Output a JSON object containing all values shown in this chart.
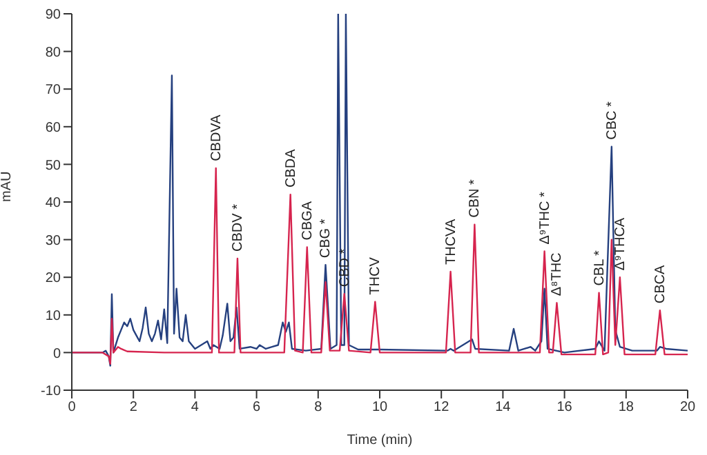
{
  "chart_data": {
    "type": "line",
    "xlabel": "Time (min)",
    "ylabel": "mAU",
    "xlim": [
      0,
      20
    ],
    "xticks": [
      0,
      2,
      4,
      6,
      8,
      10,
      12,
      14,
      16,
      18,
      20
    ],
    "ylim": [
      -10,
      90
    ],
    "yticks": [
      -10,
      0,
      10,
      20,
      30,
      40,
      50,
      60,
      70,
      80,
      90
    ],
    "marker": "none",
    "line_style": "solid",
    "series": [
      {
        "color": "#25407f",
        "x": [
          0,
          1.0,
          1.1,
          1.2,
          1.25,
          1.3,
          1.35,
          1.5,
          1.6,
          1.7,
          1.8,
          1.9,
          2.0,
          2.1,
          2.2,
          2.3,
          2.4,
          2.5,
          2.6,
          2.7,
          2.8,
          2.9,
          3.0,
          3.1,
          3.25,
          3.32,
          3.4,
          3.5,
          3.6,
          3.7,
          3.8,
          4.0,
          4.4,
          4.5,
          4.6,
          4.8,
          4.9,
          5.05,
          5.15,
          5.25,
          5.35,
          5.45,
          5.8,
          6.0,
          6.1,
          6.3,
          6.5,
          6.7,
          6.85,
          6.95,
          7.05,
          7.15,
          7.6,
          8.1,
          8.24,
          8.4,
          8.6,
          8.65,
          8.75,
          8.85,
          8.9,
          9.0,
          9.3,
          10,
          12.2,
          12.3,
          12.4,
          13.0,
          13.1,
          14.2,
          14.35,
          14.5,
          14.9,
          15.05,
          15.25,
          15.35,
          15.45,
          16.0,
          17.0,
          17.12,
          17.3,
          17.53,
          17.65,
          17.8,
          18.2,
          19.0,
          19.1,
          19.3,
          20
        ],
        "values": [
          0,
          0,
          0.5,
          -1,
          -3.5,
          15.5,
          0,
          4,
          6,
          8,
          7,
          9,
          6,
          4.5,
          3,
          6.5,
          12,
          5,
          3,
          5,
          8.5,
          3.5,
          11.5,
          2.5,
          73.6,
          5,
          17,
          4,
          3,
          10,
          3,
          1,
          3,
          1,
          2,
          1,
          4.5,
          13,
          3,
          4,
          12,
          1,
          1.5,
          1,
          2,
          1,
          1.5,
          2,
          8,
          5.5,
          8,
          1,
          0.5,
          1,
          23.3,
          1,
          2,
          90,
          2,
          2,
          90,
          2,
          0.8,
          0.8,
          0.5,
          1,
          0.5,
          3.5,
          1,
          0.5,
          6.3,
          0.5,
          1.5,
          0.5,
          3,
          17,
          1,
          0,
          1,
          3,
          0.5,
          54.7,
          6,
          1.5,
          0.5,
          0.5,
          1.5,
          1,
          0.5
        ]
      },
      {
        "color": "#d6244e",
        "x": [
          0,
          1.0,
          1.2,
          1.25,
          1.3,
          1.35,
          1.5,
          1.6,
          1.8,
          3,
          4.55,
          4.68,
          4.78,
          5.28,
          5.38,
          5.48,
          6.9,
          7.1,
          7.25,
          7.5,
          7.64,
          7.78,
          8.1,
          8.24,
          8.38,
          8.7,
          8.85,
          9.0,
          9.7,
          9.85,
          10.0,
          12.15,
          12.3,
          12.45,
          12.95,
          13.08,
          13.22,
          15.2,
          15.35,
          15.5,
          15.62,
          15.75,
          15.9,
          17.0,
          17.12,
          17.25,
          17.42,
          17.53,
          17.65,
          17.8,
          17.95,
          18.95,
          19.1,
          19.25,
          20
        ],
        "values": [
          0,
          0,
          -1,
          -3,
          9,
          0,
          1.5,
          1,
          0.3,
          0,
          0,
          49,
          0,
          0,
          25,
          0,
          0,
          42,
          0.5,
          0,
          28,
          0,
          0,
          18.7,
          0.5,
          0.5,
          15.6,
          0.5,
          0,
          13.5,
          0,
          0,
          21.5,
          0,
          0,
          34,
          0,
          0,
          26.9,
          0,
          0,
          13.2,
          -0.5,
          -0.5,
          15.9,
          -0.5,
          0,
          30,
          2,
          20,
          -0.5,
          -0.5,
          11.2,
          -0.5,
          -0.5
        ]
      }
    ],
    "annotations": [
      {
        "text": "CBDVA",
        "x": 4.68,
        "y": 49
      },
      {
        "text": "CBDV *",
        "x": 5.38,
        "y": 25
      },
      {
        "text": "CBDA",
        "x": 7.1,
        "y": 42
      },
      {
        "text": "CBGA",
        "x": 7.64,
        "y": 28
      },
      {
        "text": "CBG *",
        "x": 8.24,
        "y": 23.3
      },
      {
        "text": "CBD *",
        "x": 8.85,
        "y": 15.6
      },
      {
        "text": "THCV",
        "x": 9.85,
        "y": 13.5
      },
      {
        "text": "THCVA",
        "x": 12.3,
        "y": 21.5
      },
      {
        "text": "CBN *",
        "x": 13.08,
        "y": 34
      },
      {
        "text": "Δ⁹THC *",
        "x": 15.35,
        "y": 26.9
      },
      {
        "text": "Δ⁸THC",
        "x": 15.75,
        "y": 13.2
      },
      {
        "text": "CBL *",
        "x": 17.12,
        "y": 15.9
      },
      {
        "text": "CBC *",
        "x": 17.53,
        "y": 54.7
      },
      {
        "text": "Δ⁹THCA",
        "x": 17.8,
        "y": 20
      },
      {
        "text": "CBCA",
        "x": 19.1,
        "y": 11.2
      }
    ]
  }
}
